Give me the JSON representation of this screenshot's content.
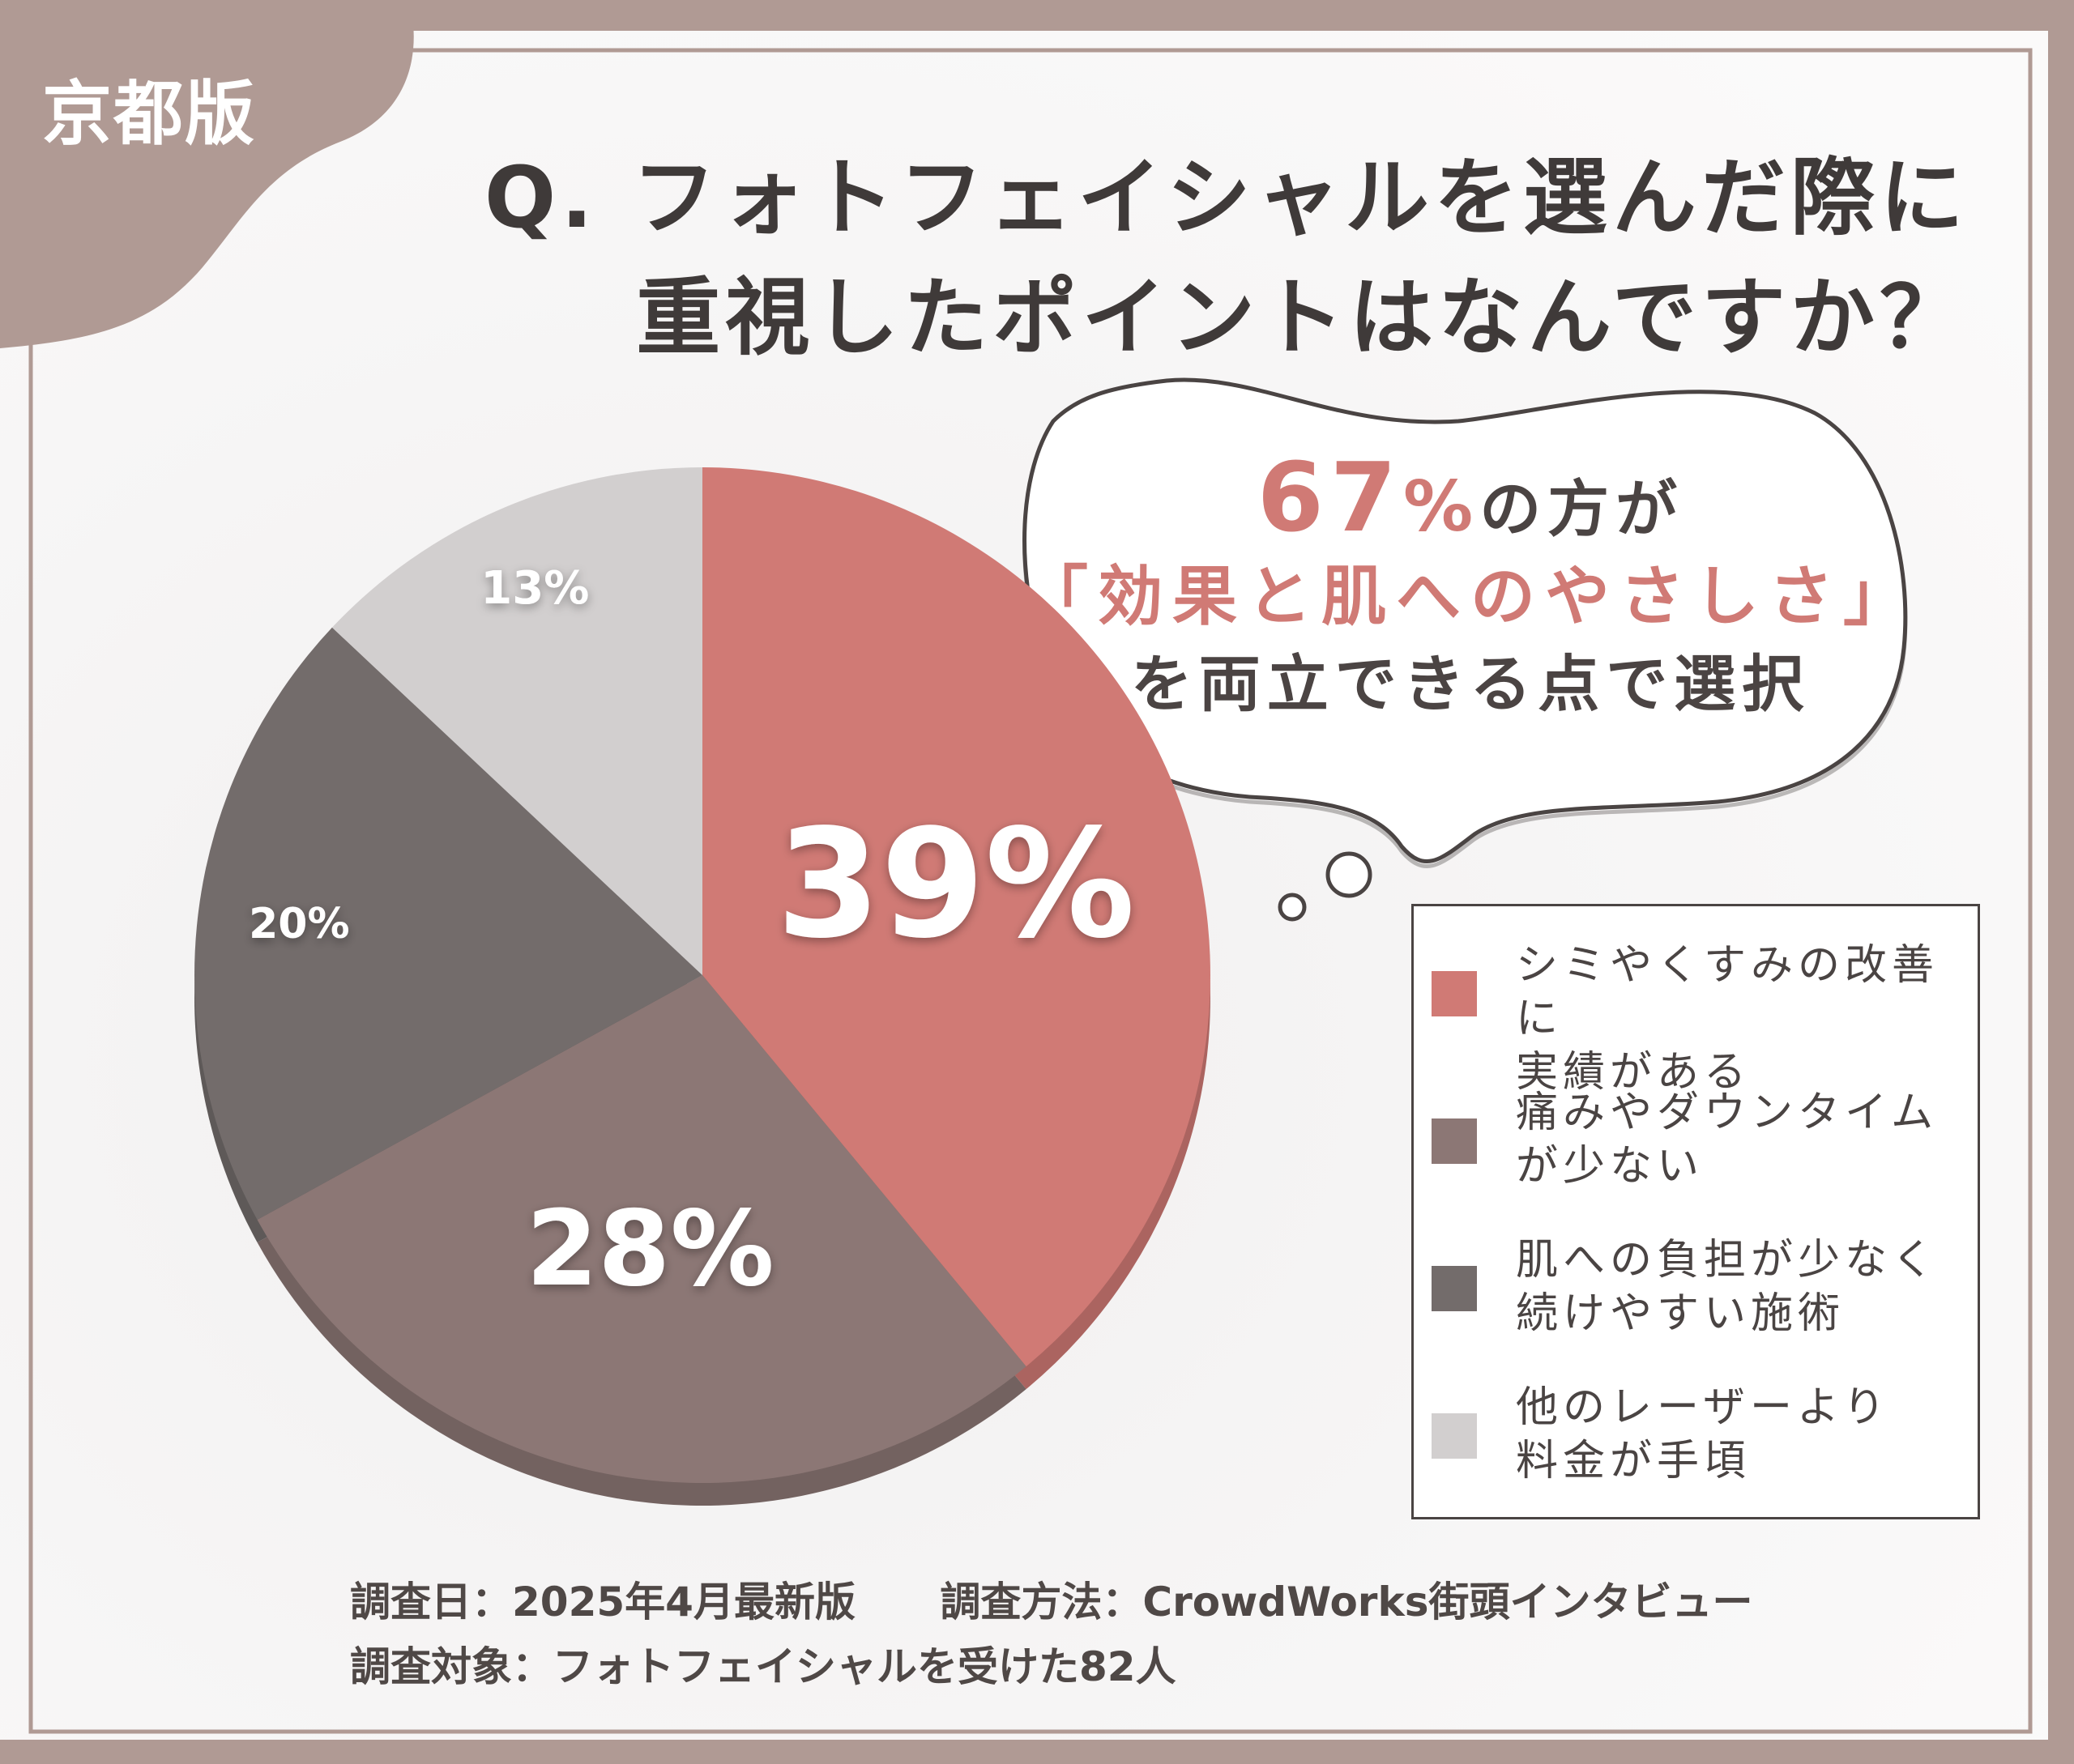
{
  "badge": "京都版",
  "question": {
    "line1": "Q. フォトフェイシャルを選んだ際に",
    "line2": "重視したポイントはなんですか？"
  },
  "callout": {
    "percent": "67",
    "percent_sign": "%",
    "line1_rest": "の方が",
    "line2": "「効果と肌へのやさしさ」",
    "line3": "を両立できる点で選択"
  },
  "colors": {
    "accent": "#d07a75",
    "frame": "#b09a94",
    "text": "#3f3a39"
  },
  "chart_data": {
    "type": "pie",
    "title": "",
    "slices": [
      {
        "label": "シミやくすみの改善に実績がある",
        "label_lines": [
          "シミやくすみの改善に",
          "実績がある"
        ],
        "value": 39,
        "display": "39%",
        "color": "#d07a75"
      },
      {
        "label": "痛みやダウンタイムが少ない",
        "label_lines": [
          "痛みやダウンタイム",
          "が少ない"
        ],
        "value": 28,
        "display": "28%",
        "color": "#8c7775"
      },
      {
        "label": "肌への負担が少なく続けやすい施術",
        "label_lines": [
          "肌への負担が少なく",
          "続けやすい施術"
        ],
        "value": 20,
        "display": "20%",
        "color": "#736c6b"
      },
      {
        "label": "他のレーザーより料金が手頃",
        "label_lines": [
          "他のレーザーより",
          "料金が手頃"
        ],
        "value": 13,
        "display": "13%",
        "color": "#d2cfcf"
      }
    ],
    "legend_position": "right"
  },
  "footer": {
    "survey_date": "調査日：2025年4月最新版",
    "survey_method": "調査方法：CrowdWorks街頭インタビュー",
    "survey_target": "調査対象：フォトフェイシャルを受けた82人"
  }
}
